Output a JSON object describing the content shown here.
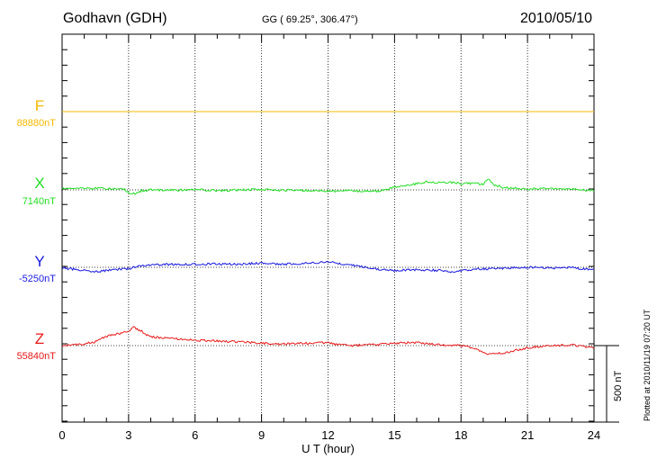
{
  "header": {
    "station": "Godhavn (GDH)",
    "coords": "GG ( 69.25°, 306.47°)",
    "date": "2010/05/10"
  },
  "side_note": "Plotted at 2010/11/19 07:20 UT",
  "scale_label": "500 nT",
  "channels": [
    {
      "letter": "F",
      "baseline": "88880nT",
      "color": "#f5b800"
    },
    {
      "letter": "X",
      "baseline": "7140nT",
      "color": "#22dd22"
    },
    {
      "letter": "Y",
      "baseline": "-5250nT",
      "color": "#1a1adf"
    },
    {
      "letter": "Z",
      "baseline": "55840nT",
      "color": "#e81818"
    }
  ],
  "chart_data": {
    "type": "line",
    "title": "",
    "xlabel": "U T (hour)",
    "ylabel": "",
    "x_ticks": [
      "0",
      "3",
      "6",
      "9",
      "12",
      "15",
      "18",
      "21",
      "24"
    ],
    "xlim": [
      0,
      24
    ],
    "scale_bar_nT": 500,
    "units": "nT",
    "series": [
      {
        "name": "F",
        "baseline_nT": 88880,
        "color": "#f5b800",
        "points": [
          [
            0,
            0
          ],
          [
            3,
            0
          ],
          [
            6,
            0
          ],
          [
            9,
            0
          ],
          [
            12,
            0
          ],
          [
            15,
            0
          ],
          [
            18,
            0
          ],
          [
            21,
            0
          ],
          [
            24,
            0
          ]
        ]
      },
      {
        "name": "X",
        "baseline_nT": 7140,
        "color": "#22dd22",
        "points": [
          [
            0,
            10
          ],
          [
            1,
            12
          ],
          [
            2,
            8
          ],
          [
            2.8,
            5
          ],
          [
            3.0,
            -15
          ],
          [
            3.3,
            -28
          ],
          [
            3.6,
            -5
          ],
          [
            4,
            0
          ],
          [
            5,
            -2
          ],
          [
            6,
            2
          ],
          [
            7,
            -5
          ],
          [
            8,
            0
          ],
          [
            9,
            3
          ],
          [
            10,
            -2
          ],
          [
            11,
            -3
          ],
          [
            12,
            -8
          ],
          [
            13,
            -5
          ],
          [
            14,
            -10
          ],
          [
            14.6,
            -2
          ],
          [
            15,
            20
          ],
          [
            16,
            40
          ],
          [
            16.5,
            55
          ],
          [
            17,
            45
          ],
          [
            17.5,
            50
          ],
          [
            18,
            40
          ],
          [
            18.5,
            42
          ],
          [
            19,
            35
          ],
          [
            19.2,
            70
          ],
          [
            19.5,
            30
          ],
          [
            20,
            15
          ],
          [
            21,
            5
          ],
          [
            22,
            10
          ],
          [
            23,
            5
          ],
          [
            24,
            -5
          ]
        ]
      },
      {
        "name": "Y",
        "baseline_nT": -5250,
        "color": "#1a1adf",
        "points": [
          [
            0,
            -5
          ],
          [
            1,
            -20
          ],
          [
            1.5,
            -30
          ],
          [
            2,
            -20
          ],
          [
            3,
            -10
          ],
          [
            3.5,
            10
          ],
          [
            4,
            15
          ],
          [
            5,
            20
          ],
          [
            6,
            18
          ],
          [
            7,
            22
          ],
          [
            8,
            20
          ],
          [
            9,
            28
          ],
          [
            10,
            20
          ],
          [
            11,
            25
          ],
          [
            11.5,
            30
          ],
          [
            12,
            35
          ],
          [
            12.5,
            25
          ],
          [
            13,
            15
          ],
          [
            14,
            -5
          ],
          [
            14.5,
            -15
          ],
          [
            15,
            -20
          ],
          [
            16,
            -15
          ],
          [
            17,
            -20
          ],
          [
            17.5,
            -30
          ],
          [
            18,
            -20
          ],
          [
            19,
            -10
          ],
          [
            20,
            -5
          ],
          [
            21,
            0
          ],
          [
            22,
            -5
          ],
          [
            23,
            -3
          ],
          [
            24,
            -15
          ]
        ]
      },
      {
        "name": "Z",
        "baseline_nT": 55840,
        "color": "#e81818",
        "points": [
          [
            0,
            0
          ],
          [
            1,
            10
          ],
          [
            1.5,
            25
          ],
          [
            2,
            60
          ],
          [
            2.5,
            75
          ],
          [
            3,
            95
          ],
          [
            3.2,
            120
          ],
          [
            3.5,
            100
          ],
          [
            4,
            55
          ],
          [
            5,
            45
          ],
          [
            6,
            35
          ],
          [
            7,
            30
          ],
          [
            8,
            25
          ],
          [
            9,
            15
          ],
          [
            10,
            10
          ],
          [
            11,
            15
          ],
          [
            12,
            20
          ],
          [
            12.5,
            5
          ],
          [
            13,
            0
          ],
          [
            14,
            5
          ],
          [
            15,
            15
          ],
          [
            16,
            20
          ],
          [
            16.5,
            15
          ],
          [
            17,
            5
          ],
          [
            18,
            0
          ],
          [
            18.5,
            -15
          ],
          [
            19,
            -45
          ],
          [
            19.2,
            -60
          ],
          [
            20,
            -45
          ],
          [
            21,
            -15
          ],
          [
            22,
            0
          ],
          [
            23,
            5
          ],
          [
            24,
            -15
          ]
        ]
      }
    ]
  }
}
